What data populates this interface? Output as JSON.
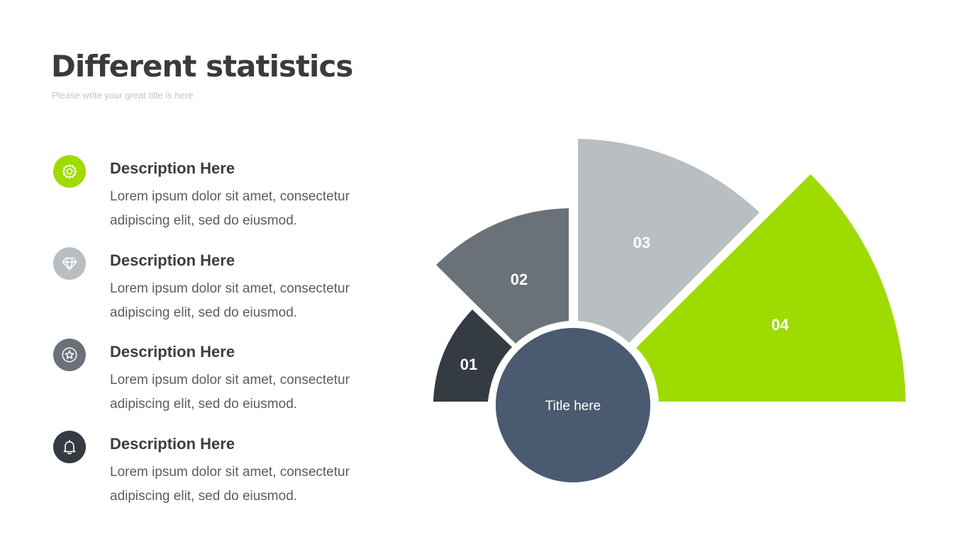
{
  "header": {
    "title": "Different statistics",
    "subtitle": "Please write your great title is here"
  },
  "items": [
    {
      "heading": "Description Here",
      "body": "Lorem ipsum dolor sit amet, consectetur adipiscing elit, sed do eiusmod.",
      "icon": "gear-icon",
      "color": "#9fdb00"
    },
    {
      "heading": "Description Here",
      "body": "Lorem ipsum dolor sit amet, consectetur adipiscing elit, sed do eiusmod.",
      "icon": "diamond-icon",
      "color": "#b8bec2"
    },
    {
      "heading": "Description Here",
      "body": "Lorem ipsum dolor sit amet, consectetur adipiscing elit, sed do eiusmod.",
      "icon": "star-badge-icon",
      "color": "#6a7179"
    },
    {
      "heading": "Description Here",
      "body": "Lorem ipsum dolor sit amet, consectetur adipiscing elit, sed do eiusmod.",
      "icon": "bell-icon",
      "color": "#353b42"
    }
  ],
  "diagram": {
    "center_label": "Title here",
    "center_color": "#4a5a70",
    "segments": [
      {
        "label": "01",
        "color": "#353b42"
      },
      {
        "label": "02",
        "color": "#6a7179"
      },
      {
        "label": "03",
        "color": "#b8bec2"
      },
      {
        "label": "04",
        "color": "#9fdb00"
      }
    ]
  }
}
